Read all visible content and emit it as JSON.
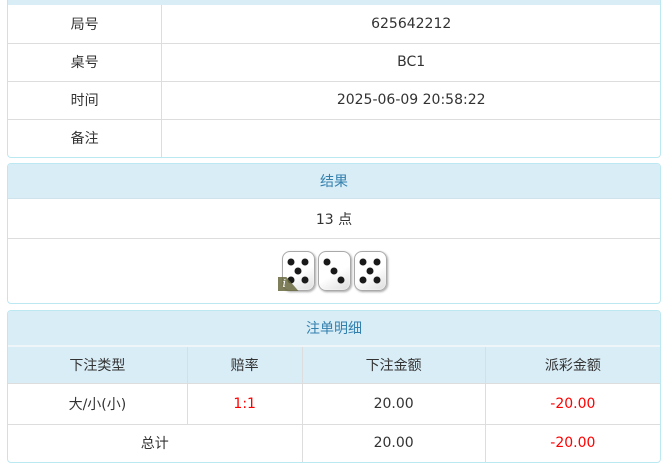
{
  "game_info": {
    "rows": [
      {
        "label": "局号",
        "value": "625642212"
      },
      {
        "label": "桌号",
        "value": "BC1"
      },
      {
        "label": "时间",
        "value": "2025-06-09 20:58:22"
      },
      {
        "label": "备注",
        "value": ""
      }
    ]
  },
  "result": {
    "title": "结果",
    "points": "13 点",
    "dice": [
      5,
      3,
      5
    ],
    "info_icon": "i"
  },
  "bet_details": {
    "title": "注单明细",
    "columns": [
      "下注类型",
      "赔率",
      "下注金额",
      "派彩金额"
    ],
    "rows": [
      {
        "bet_type": "大/小(小)",
        "odds": "1:1",
        "bet_amount": "20.00",
        "payout": "-20.00"
      }
    ],
    "total": {
      "label": "总计",
      "bet_amount": "20.00",
      "payout": "-20.00"
    }
  },
  "colors": {
    "panel_header_bg": "#d9edf7",
    "panel_header_text": "#3380ad",
    "panel_border": "#bce8f1",
    "cell_border": "#dddddd",
    "text": "#333333",
    "negative_value": "#ff0000"
  }
}
